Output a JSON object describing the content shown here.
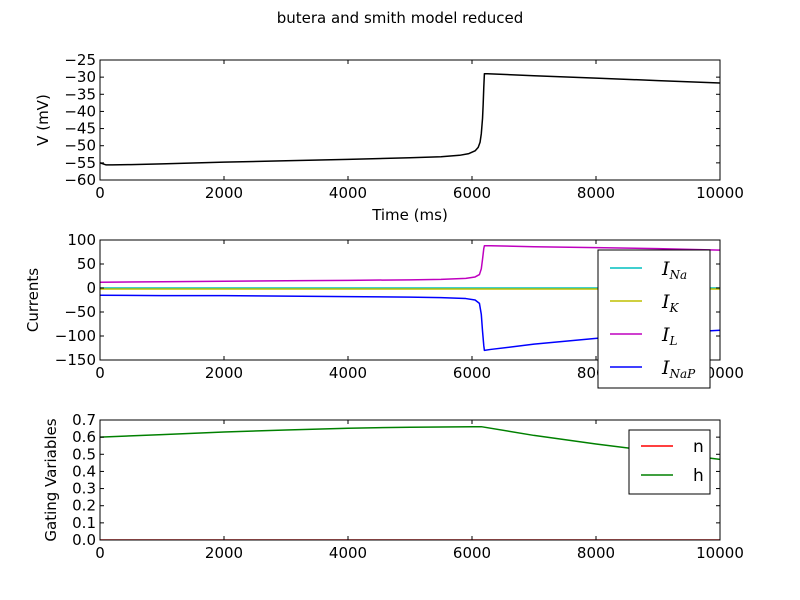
{
  "figure_title": "butera and smith model reduced",
  "chart_data": [
    {
      "type": "line",
      "xlabel": "Time (ms)",
      "ylabel": "V (mV)",
      "xlim": [
        0,
        10000
      ],
      "ylim": [
        -60,
        -25
      ],
      "xticks": [
        0,
        2000,
        4000,
        6000,
        8000,
        10000
      ],
      "yticks": [
        -60,
        -55,
        -50,
        -45,
        -40,
        -35,
        -30,
        -25
      ],
      "grid": false,
      "series": [
        {
          "color": "#000000",
          "x": [
            0,
            100,
            200,
            500,
            1000,
            2000,
            3000,
            4000,
            5000,
            5500,
            5800,
            5950,
            6050,
            6100,
            6130,
            6150,
            6170,
            6180,
            6190,
            6200,
            6250,
            7000,
            8000,
            9000,
            10000
          ],
          "y": [
            -55.0,
            -55.6,
            -55.6,
            -55.5,
            -55.3,
            -54.8,
            -54.4,
            -54.0,
            -53.5,
            -53.2,
            -52.8,
            -52.3,
            -51.5,
            -50.5,
            -49.0,
            -46.5,
            -42.0,
            -38.0,
            -33.0,
            -29.0,
            -29.0,
            -29.6,
            -30.3,
            -31.0,
            -31.7
          ]
        }
      ]
    },
    {
      "type": "line",
      "xlabel": "",
      "ylabel": "Currents",
      "xlim": [
        0,
        10000
      ],
      "ylim": [
        -150,
        100
      ],
      "xticks": [
        0,
        2000,
        4000,
        6000,
        8000,
        10000
      ],
      "yticks": [
        -150,
        -100,
        -50,
        0,
        50,
        100
      ],
      "grid": false,
      "legend_position": "right",
      "series": [
        {
          "name": "I_Na",
          "legend_main": "I",
          "legend_sub": "Na",
          "color": "#00bfbf",
          "x": [
            0,
            10000
          ],
          "y": [
            0,
            0
          ]
        },
        {
          "name": "I_K",
          "legend_main": "I",
          "legend_sub": "K",
          "color": "#bfbf00",
          "x": [
            0,
            10000
          ],
          "y": [
            -2,
            -2
          ]
        },
        {
          "name": "I_L",
          "legend_main": "I",
          "legend_sub": "L",
          "color": "#bf00bf",
          "x": [
            0,
            1000,
            2000,
            3000,
            4000,
            5000,
            5500,
            5900,
            6050,
            6120,
            6150,
            6170,
            6190,
            6200,
            6300,
            7000,
            8000,
            9000,
            10000
          ],
          "y": [
            12,
            13,
            14,
            15,
            16,
            17,
            18,
            20,
            23,
            28,
            40,
            60,
            82,
            88,
            88,
            86,
            84,
            82,
            79
          ]
        },
        {
          "name": "I_NaP",
          "legend_main": "I",
          "legend_sub": "NaP",
          "color": "#0000ff",
          "x": [
            0,
            1000,
            2000,
            3000,
            4000,
            5000,
            5500,
            5900,
            6050,
            6120,
            6150,
            6170,
            6190,
            6200,
            6300,
            7000,
            8000,
            9000,
            10000
          ],
          "y": [
            -15,
            -16,
            -16,
            -17,
            -18,
            -19,
            -20,
            -22,
            -25,
            -32,
            -55,
            -90,
            -120,
            -130,
            -128,
            -117,
            -105,
            -95,
            -88
          ]
        }
      ]
    },
    {
      "type": "line",
      "xlabel": "",
      "ylabel": "Gating Variables",
      "xlim": [
        0,
        10000
      ],
      "ylim": [
        0,
        0.7
      ],
      "xticks": [
        0,
        2000,
        4000,
        6000,
        8000,
        10000
      ],
      "yticks": [
        0.0,
        0.1,
        0.2,
        0.3,
        0.4,
        0.5,
        0.6,
        0.7
      ],
      "grid": false,
      "legend_position": "upper right",
      "series": [
        {
          "name": "n",
          "legend_main": "n",
          "legend_sub": "",
          "color": "#ff0000",
          "x": [
            0,
            10000
          ],
          "y": [
            0.0,
            0.0
          ]
        },
        {
          "name": "h",
          "legend_main": "h",
          "legend_sub": "",
          "color": "#008000",
          "x": [
            0,
            1000,
            2000,
            3000,
            4000,
            5000,
            6000,
            6150,
            7000,
            8000,
            9000,
            10000
          ],
          "y": [
            0.6,
            0.615,
            0.63,
            0.642,
            0.652,
            0.658,
            0.661,
            0.661,
            0.61,
            0.56,
            0.515,
            0.47
          ]
        }
      ]
    }
  ]
}
